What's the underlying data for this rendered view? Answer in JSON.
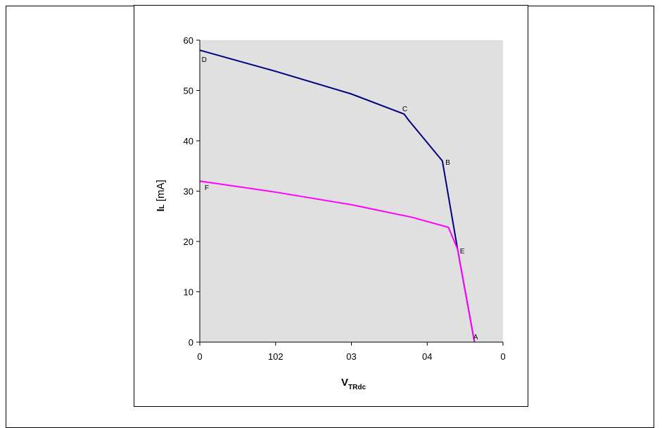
{
  "chart_data": {
    "type": "line",
    "xlabel": {
      "main": "V",
      "sub": "TRdc"
    },
    "ylabel": {
      "main": "I",
      "sub": "L",
      "unit": " [mA]"
    },
    "xlim": [
      0,
      50
    ],
    "ylim": [
      0,
      60
    ],
    "x_tick_values": [
      0,
      12.5,
      25,
      37.5,
      50
    ],
    "x_tick_labels": [
      "0",
      "102",
      "03",
      "04",
      "0"
    ],
    "y_ticks": [
      0,
      10,
      20,
      30,
      40,
      50,
      60
    ],
    "background": "#e0e0e0",
    "grid": false,
    "series": [
      {
        "color": "#000080",
        "points": [
          [
            0,
            58
          ],
          [
            12.5,
            53.8
          ],
          [
            25,
            49.3
          ],
          [
            33.7,
            45.3
          ],
          [
            34.5,
            44
          ],
          [
            40,
            36
          ],
          [
            42.5,
            18.5
          ],
          [
            45.3,
            0
          ]
        ]
      },
      {
        "color": "#ff00ff",
        "points": [
          [
            0,
            32
          ],
          [
            12.5,
            29.8
          ],
          [
            25,
            27.3
          ],
          [
            35,
            24.8
          ],
          [
            41,
            22.8
          ],
          [
            42.5,
            18.5
          ],
          [
            45.3,
            0
          ]
        ]
      }
    ],
    "point_labels": [
      {
        "text": "D",
        "x": 0.3,
        "y": 56.2
      },
      {
        "text": "C",
        "x": 33.4,
        "y": 46.4
      },
      {
        "text": "B",
        "x": 40.5,
        "y": 35.8
      },
      {
        "text": "E",
        "x": 42.9,
        "y": 18.2
      },
      {
        "text": "A",
        "x": 45.1,
        "y": 1.1
      },
      {
        "text": "F",
        "x": 0.8,
        "y": 30.8
      }
    ]
  }
}
